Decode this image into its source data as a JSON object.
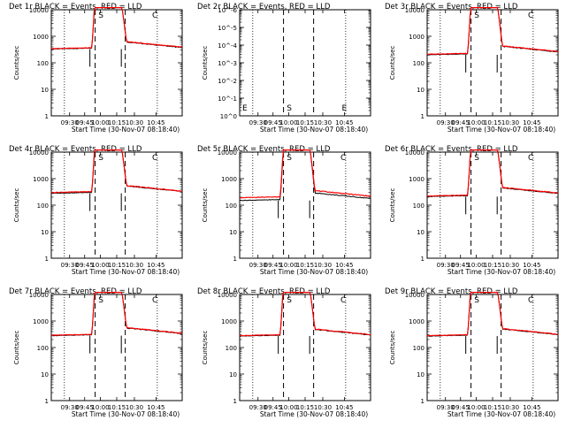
{
  "chart_data": [
    {
      "type": "line",
      "panel": "1r",
      "title": "Det 1r BLACK = Events, RED = LLD",
      "ylabel": "Counts/sec",
      "xlabel": "Start Time (30-Nov-07 08:18:40)",
      "yscale": "log",
      "ylim": [
        1,
        10000
      ],
      "yticks": [
        "1",
        "10",
        "100",
        "1000",
        "10000"
      ],
      "xticks": [
        "09:30",
        "09:45",
        "10:00",
        "10:15",
        "10:30",
        "10:45"
      ],
      "markers": [
        "S",
        "C"
      ],
      "series": [
        {
          "name": "Events",
          "color": "#000000",
          "baseline_before": 330,
          "baseline_after": 380
        },
        {
          "name": "LLD",
          "color": "#ff0000",
          "baseline_before": 340,
          "baseline_after": 390
        }
      ]
    },
    {
      "type": "line",
      "panel": "2r",
      "title": "Det 2r BLACK = Events, RED = LLD",
      "ylabel": "Counts/sec",
      "xlabel": "Start Time (30-Nov-07 08:18:40)",
      "yscale": "log",
      "ylim": [
        1,
        1e-06
      ],
      "yticks": [
        "10^0",
        "10^-1",
        "10^-2",
        "10^-3",
        "10^-4",
        "10^-5",
        "10^-6"
      ],
      "xticks": [
        "09:30",
        "09:45",
        "10:00",
        "10:15",
        "10:30",
        "10:45"
      ],
      "markers": [
        "E",
        "S",
        "E"
      ],
      "series": []
    },
    {
      "type": "line",
      "panel": "3r",
      "title": "Det 3r BLACK = Events, RED = LLD",
      "ylabel": "Counts/sec",
      "xlabel": "Start Time (30-Nov-07 08:18:40)",
      "yscale": "log",
      "ylim": [
        1,
        10000
      ],
      "yticks": [
        "1",
        "10",
        "100",
        "1000",
        "10000"
      ],
      "xticks": [
        "09:30",
        "09:45",
        "10:00",
        "10:15",
        "10:30",
        "10:45"
      ],
      "markers": [
        "S",
        "C"
      ],
      "series": [
        {
          "name": "Events",
          "color": "#000000",
          "baseline_before": 200,
          "baseline_after": 260
        },
        {
          "name": "LLD",
          "color": "#ff0000",
          "baseline_before": 210,
          "baseline_after": 270
        }
      ]
    },
    {
      "type": "line",
      "panel": "4r",
      "title": "Det 4r BLACK = Events, RED = LLD",
      "ylabel": "Counts/sec",
      "xlabel": "Start Time (30-Nov-07 08:18:40)",
      "yscale": "log",
      "ylim": [
        1,
        10000
      ],
      "yticks": [
        "1",
        "10",
        "100",
        "1000",
        "10000"
      ],
      "xticks": [
        "09:30",
        "09:45",
        "10:00",
        "10:15",
        "10:30",
        "10:45"
      ],
      "markers": [
        "S",
        "C"
      ],
      "series": [
        {
          "name": "Events",
          "color": "#000000",
          "baseline_before": 280,
          "baseline_after": 330
        },
        {
          "name": "LLD",
          "color": "#ff0000",
          "baseline_before": 300,
          "baseline_after": 340
        }
      ]
    },
    {
      "type": "line",
      "panel": "5r",
      "title": "Det 5r BLACK = Events, RED = LLD",
      "ylabel": "Counts/sec",
      "xlabel": "Start Time (30-Nov-07 08:18:40)",
      "yscale": "log",
      "ylim": [
        1,
        10000
      ],
      "yticks": [
        "1",
        "10",
        "100",
        "1000",
        "10000"
      ],
      "xticks": [
        "09:30",
        "09:45",
        "10:00",
        "10:15",
        "10:30",
        "10:45"
      ],
      "markers": [
        "S",
        "C"
      ],
      "series": [
        {
          "name": "Events",
          "color": "#000000",
          "baseline_before": 150,
          "baseline_after": 180
        },
        {
          "name": "LLD",
          "color": "#ff0000",
          "baseline_before": 190,
          "baseline_after": 220
        }
      ]
    },
    {
      "type": "line",
      "panel": "6r",
      "title": "Det 6r BLACK = Events, RED = LLD",
      "ylabel": "Counts/sec",
      "xlabel": "Start Time (30-Nov-07 08:18:40)",
      "yscale": "log",
      "ylim": [
        1,
        10000
      ],
      "yticks": [
        "1",
        "10",
        "100",
        "1000",
        "10000"
      ],
      "xticks": [
        "09:30",
        "09:45",
        "10:00",
        "10:15",
        "10:30",
        "10:45"
      ],
      "markers": [
        "S",
        "C"
      ],
      "series": [
        {
          "name": "Events",
          "color": "#000000",
          "baseline_before": 210,
          "baseline_after": 280
        },
        {
          "name": "LLD",
          "color": "#ff0000",
          "baseline_before": 220,
          "baseline_after": 290
        }
      ]
    },
    {
      "type": "line",
      "panel": "7r",
      "title": "Det 7r BLACK = Events, RED = LLD",
      "ylabel": "Counts/sec",
      "xlabel": "Start Time (30-Nov-07 08:18:40)",
      "yscale": "log",
      "ylim": [
        1,
        10000
      ],
      "yticks": [
        "1",
        "10",
        "100",
        "1000",
        "10000"
      ],
      "xticks": [
        "09:30",
        "09:45",
        "10:00",
        "10:15",
        "10:30",
        "10:45"
      ],
      "markers": [
        "S",
        "C"
      ],
      "series": [
        {
          "name": "Events",
          "color": "#000000",
          "baseline_before": 280,
          "baseline_after": 340
        },
        {
          "name": "LLD",
          "color": "#ff0000",
          "baseline_before": 290,
          "baseline_after": 350
        }
      ]
    },
    {
      "type": "line",
      "panel": "8r",
      "title": "Det 8r BLACK = Events, RED = LLD",
      "ylabel": "Counts/sec",
      "xlabel": "Start Time (30-Nov-07 08:18:40)",
      "yscale": "log",
      "ylim": [
        1,
        10000
      ],
      "yticks": [
        "1",
        "10",
        "100",
        "1000",
        "10000"
      ],
      "xticks": [
        "09:30",
        "09:45",
        "10:00",
        "10:15",
        "10:30",
        "10:45"
      ],
      "markers": [
        "S",
        "C"
      ],
      "series": [
        {
          "name": "Events",
          "color": "#000000",
          "baseline_before": 270,
          "baseline_after": 300
        },
        {
          "name": "LLD",
          "color": "#ff0000",
          "baseline_before": 280,
          "baseline_after": 310
        }
      ]
    },
    {
      "type": "line",
      "panel": "9r",
      "title": "Det 9r BLACK = Events, RED = LLD",
      "ylabel": "Counts/sec",
      "xlabel": "Start Time (30-Nov-07 08:18:40)",
      "yscale": "log",
      "ylim": [
        1,
        10000
      ],
      "yticks": [
        "1",
        "10",
        "100",
        "1000",
        "10000"
      ],
      "xticks": [
        "09:30",
        "09:45",
        "10:00",
        "10:15",
        "10:30",
        "10:45"
      ],
      "markers": [
        "S",
        "C"
      ],
      "series": [
        {
          "name": "Events",
          "color": "#000000",
          "baseline_before": 270,
          "baseline_after": 310
        },
        {
          "name": "LLD",
          "color": "#ff0000",
          "baseline_before": 280,
          "baseline_after": 320
        }
      ]
    }
  ]
}
